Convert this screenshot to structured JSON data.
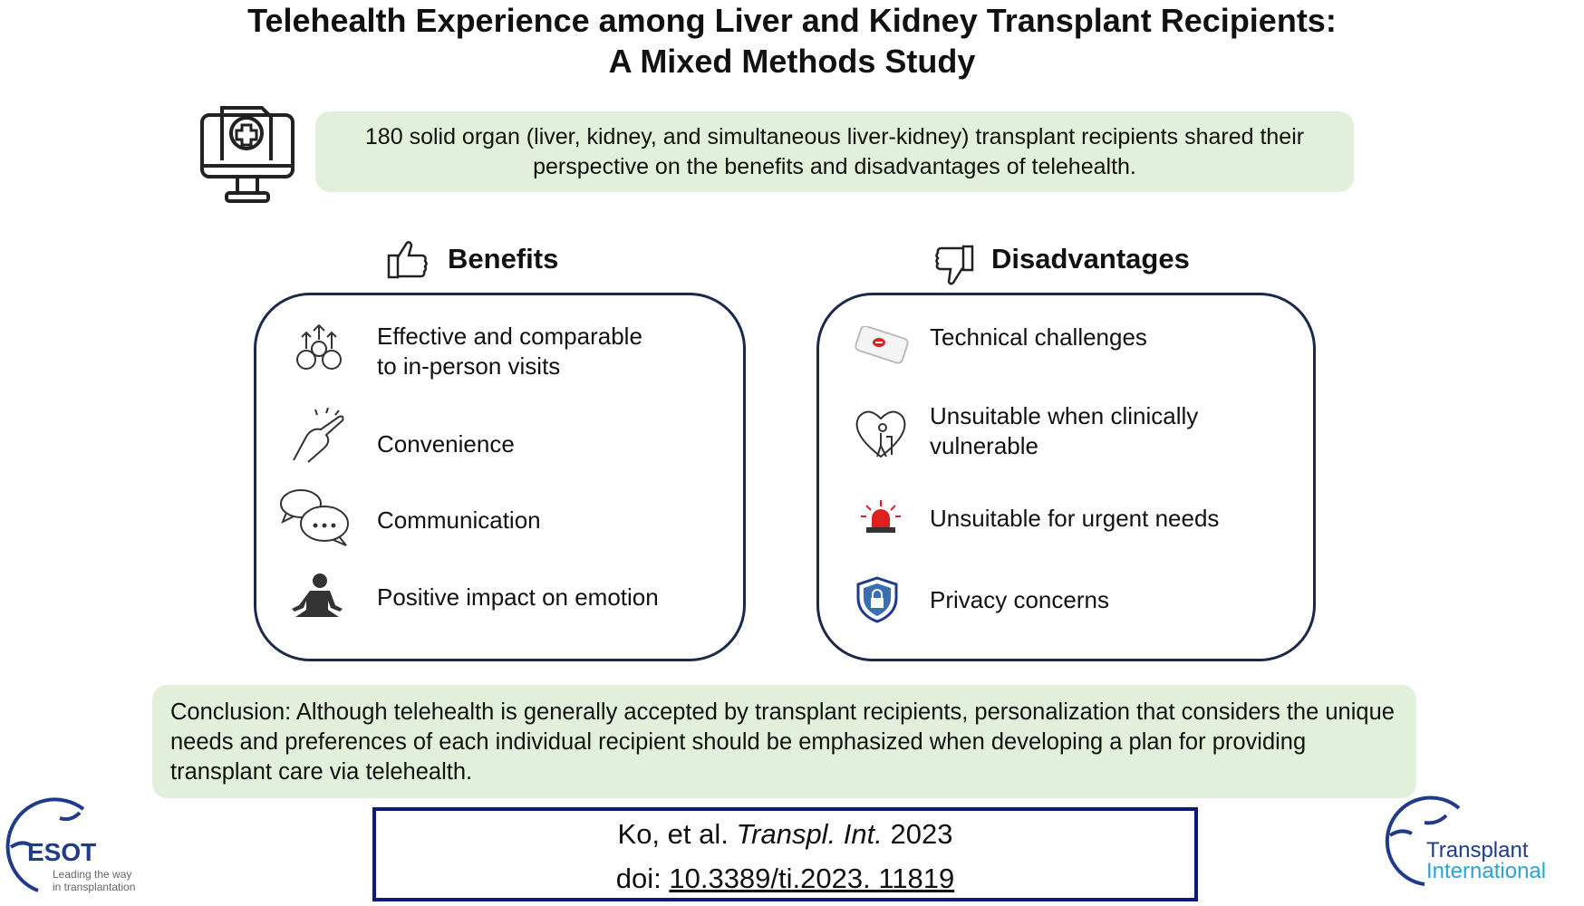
{
  "title": {
    "line1": "Telehealth Experience among Liver and Kidney Transplant Recipients:",
    "line2": "A Mixed Methods Study"
  },
  "summary": "180 solid organ (liver, kidney, and simultaneous liver-kidney) transplant recipients shared their perspective on the benefits and disadvantages of telehealth.",
  "benefits": {
    "heading": "Benefits",
    "items": [
      {
        "label": "Effective and comparable",
        "label2": "to in-person visits"
      },
      {
        "label": "Convenience"
      },
      {
        "label": "Communication"
      },
      {
        "label": "Positive impact on emotion"
      }
    ]
  },
  "disadvantages": {
    "heading": "Disadvantages",
    "items": [
      {
        "label": "Technical challenges"
      },
      {
        "label": "Unsuitable when clinically",
        "label2": "vulnerable"
      },
      {
        "label": "Unsuitable for urgent needs"
      },
      {
        "label": "Privacy concerns"
      }
    ]
  },
  "conclusion": "Conclusion: Although telehealth is generally accepted by transplant recipients, personalization that considers the unique needs and preferences of each individual recipient should be emphasized when developing a plan for providing transplant care via telehealth.",
  "citation": {
    "authors": "Ko, et al.",
    "journal": "Transpl. Int.",
    "year": "2023",
    "doi_prefix": "doi:",
    "doi": "10.3389/ti.2023. 11819"
  },
  "logos": {
    "esot": "ESOT",
    "esot_tagline1": "Leading the way",
    "esot_tagline2": "in transplantation",
    "ti1": "Transplant",
    "ti2": "International"
  },
  "colors": {
    "green": "#e2efda",
    "navy": "#1b2a4a",
    "cite_border": "#0d1a7a",
    "logo_blue": "#1f3b8a",
    "logo_cyan": "#2aa3d6"
  }
}
